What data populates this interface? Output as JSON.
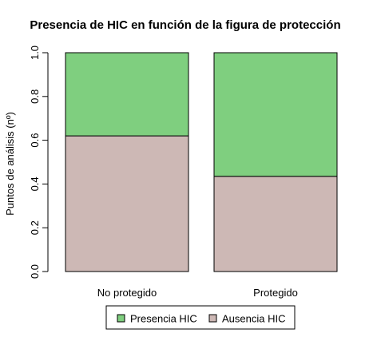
{
  "chart_data": {
    "type": "bar",
    "stacked": true,
    "title": "Presencia de HIC en función de la figura de protección",
    "xlabel": "",
    "ylabel": "Puntos de análisis (nº)",
    "ylim": [
      0,
      1
    ],
    "yticks": [
      "0.0",
      "0.2",
      "0.4",
      "0.6",
      "0.8",
      "1.0"
    ],
    "categories": [
      "No protegido",
      "Protegido"
    ],
    "series": [
      {
        "name": "Ausencia HIC",
        "values": [
          0.62,
          0.435
        ],
        "color": "#CDB8B5"
      },
      {
        "name": "Presencia HIC",
        "values": [
          0.38,
          0.565
        ],
        "color": "#7FCF7F"
      }
    ],
    "legend": {
      "position": "bottom",
      "entries": [
        {
          "label": "Presencia HIC",
          "color": "#7FCF7F"
        },
        {
          "label": "Ausencia HIC",
          "color": "#CDB8B5"
        }
      ]
    },
    "grid": false
  }
}
